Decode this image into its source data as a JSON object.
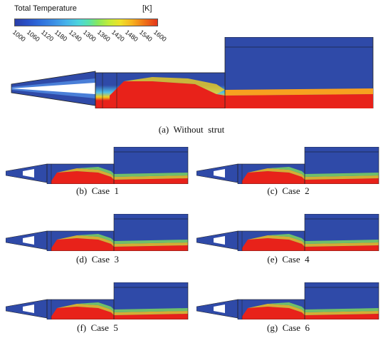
{
  "legend": {
    "title": "Total Temperature",
    "unit": "[K]",
    "ticks": [
      "1000",
      "1060",
      "1120",
      "1180",
      "1240",
      "1300",
      "1360",
      "1420",
      "1480",
      "1540",
      "1600"
    ]
  },
  "panels": [
    {
      "caption": "(a)  Without  strut"
    },
    {
      "caption": "(b)  Case  1"
    },
    {
      "caption": "(c)  Case  2"
    },
    {
      "caption": "(d)  Case  3"
    },
    {
      "caption": "(e)  Case  4"
    },
    {
      "caption": "(f)  Case  5"
    },
    {
      "caption": "(g)  Case  6"
    }
  ],
  "colors": {
    "cold": "#2f4aa8",
    "hot": "#e8221a",
    "mid_green": "#7fdc5a",
    "mid_yellow": "#f0d020",
    "mid_cyan": "#4fc0e8"
  }
}
